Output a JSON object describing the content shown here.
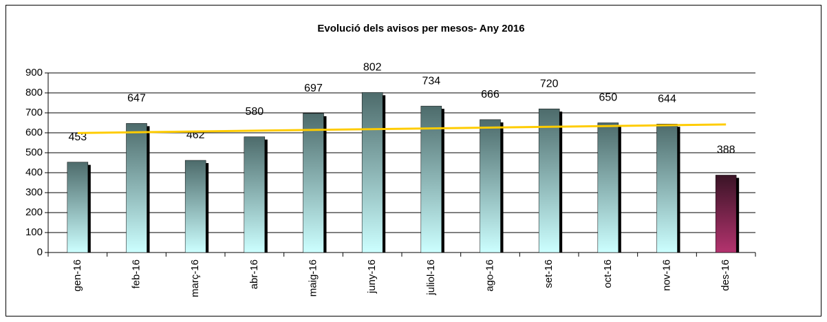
{
  "chart_data": {
    "type": "bar",
    "title": "Evolució dels avisos per mesos-  Any 2016",
    "categories": [
      "gen-16",
      "feb-16",
      "març-16",
      "abr-16",
      "maig-16",
      "juny-16",
      "juliol-16",
      "ago-16",
      "set-16",
      "oct-16",
      "nov-16",
      "des-16"
    ],
    "values": [
      453,
      647,
      462,
      580,
      697,
      802,
      734,
      666,
      720,
      650,
      644,
      388
    ],
    "colors": [
      [
        "#4d6b6b",
        "#ccffff"
      ],
      [
        "#4d6b6b",
        "#ccffff"
      ],
      [
        "#4d6b6b",
        "#ccffff"
      ],
      [
        "#4d6b6b",
        "#ccffff"
      ],
      [
        "#4d6b6b",
        "#ccffff"
      ],
      [
        "#4d6b6b",
        "#ccffff"
      ],
      [
        "#4d6b6b",
        "#ccffff"
      ],
      [
        "#4d6b6b",
        "#ccffff"
      ],
      [
        "#4d6b6b",
        "#ccffff"
      ],
      [
        "#4d6b6b",
        "#ccffff"
      ],
      [
        "#4d6b6b",
        "#ccffff"
      ],
      [
        "#3a1426",
        "#b3336e"
      ]
    ],
    "trendline": {
      "type": "linear",
      "color": "#ffcc00"
    },
    "ylim": [
      0,
      900
    ],
    "yticks": [
      0,
      100,
      200,
      300,
      400,
      500,
      600,
      700,
      800,
      900
    ],
    "grid": true
  }
}
